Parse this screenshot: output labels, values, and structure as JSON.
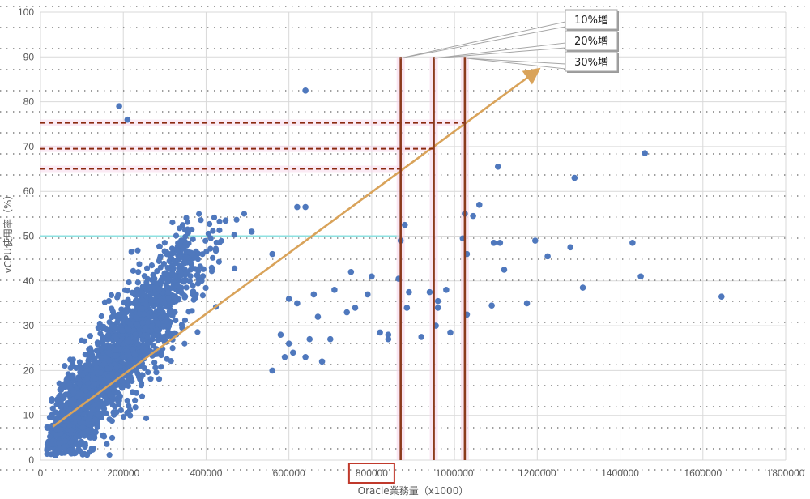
{
  "chart_data": {
    "type": "scatter",
    "xlabel": "Oracle業務量（x1000）",
    "ylabel": "vCPU使用率（%）",
    "xlim": [
      0,
      1800000
    ],
    "ylim": [
      0,
      100
    ],
    "x_ticks": [
      0,
      200000,
      400000,
      600000,
      800000,
      1000000,
      1200000,
      1400000,
      1600000,
      1800000
    ],
    "x_tick_labels": [
      "0",
      "200000",
      "400000",
      "600000",
      "800000",
      "1000000",
      "1200000",
      "1400000",
      "1600000",
      "1800000"
    ],
    "y_ticks": [
      0,
      10,
      20,
      30,
      40,
      50,
      60,
      70,
      80,
      90,
      100
    ],
    "y_tick_labels": [
      "0",
      "10",
      "20",
      "30",
      "40",
      "50",
      "60",
      "70",
      "80",
      "90",
      "100"
    ],
    "highlighted_x_tick": "800000",
    "grid": true,
    "point_color": "#4f78bd",
    "trend_line": {
      "x": [
        30000,
        1200000
      ],
      "y": [
        7.5,
        87
      ],
      "color": "#d9a35a"
    },
    "reference_line_50": {
      "y": 50,
      "color": "#8ee0e0"
    },
    "horizontal_dashed_lines": [
      {
        "y": 65,
        "x_to": 870000
      },
      {
        "y": 69.5,
        "x_to": 950000
      },
      {
        "y": 75.3,
        "x_to": 1025000
      }
    ],
    "vertical_lines": [
      {
        "x": 870000,
        "y_to": 90
      },
      {
        "x": 950000,
        "y_to": 90
      },
      {
        "x": 1025000,
        "y_to": 90
      }
    ],
    "annotations": [
      "10%増",
      "20%増",
      "30%増"
    ],
    "outlier_points": [
      [
        640000,
        82.5
      ],
      [
        190000,
        79
      ],
      [
        210000,
        76
      ],
      [
        1460000,
        68.5
      ],
      [
        1105000,
        65.5
      ],
      [
        1290000,
        63
      ],
      [
        1060000,
        57
      ],
      [
        1025000,
        55
      ],
      [
        1045000,
        54.5
      ],
      [
        880000,
        52.5
      ],
      [
        1020000,
        49.5
      ],
      [
        870000,
        49
      ],
      [
        1195000,
        49
      ],
      [
        1095000,
        48.5
      ],
      [
        1110000,
        48.5
      ],
      [
        1430000,
        48.5
      ],
      [
        1280000,
        47.5
      ],
      [
        1030000,
        46
      ],
      [
        1225000,
        45.5
      ],
      [
        1120000,
        42.5
      ],
      [
        1450000,
        41
      ],
      [
        865000,
        40.5
      ],
      [
        1310000,
        38.5
      ],
      [
        890000,
        37.5
      ],
      [
        1645000,
        36.5
      ],
      [
        940000,
        37.5
      ],
      [
        980000,
        38
      ],
      [
        960000,
        35.5
      ],
      [
        1090000,
        34.5
      ],
      [
        1175000,
        35
      ],
      [
        960000,
        34
      ],
      [
        885000,
        34
      ],
      [
        1030000,
        32.5
      ],
      [
        955000,
        30
      ],
      [
        990000,
        28.5
      ],
      [
        820000,
        28.5
      ],
      [
        920000,
        27.5
      ],
      [
        840000,
        27
      ],
      [
        760000,
        34
      ],
      [
        740000,
        33
      ],
      [
        710000,
        38
      ],
      [
        750000,
        42
      ],
      [
        800000,
        41
      ],
      [
        790000,
        37
      ],
      [
        660000,
        37
      ],
      [
        600000,
        36
      ],
      [
        620000,
        35
      ],
      [
        580000,
        28
      ],
      [
        600000,
        26
      ],
      [
        610000,
        24
      ],
      [
        640000,
        23
      ],
      [
        590000,
        23
      ],
      [
        560000,
        20
      ],
      [
        650000,
        27
      ],
      [
        670000,
        32
      ],
      [
        680000,
        22
      ],
      [
        700000,
        27
      ],
      [
        510000,
        51
      ],
      [
        560000,
        46
      ],
      [
        340000,
        49
      ],
      [
        620000,
        56.5
      ],
      [
        640000,
        56.5
      ],
      [
        220000,
        46.5
      ],
      [
        130000,
        5
      ],
      [
        840000,
        28
      ]
    ],
    "dense_cluster": [
      {
        "x_center": 210000,
        "y_center": 25,
        "slope_per_100k": 11.5,
        "x_spread": 95000,
        "y_spread": 6,
        "count": 1500
      },
      {
        "x_center": 90000,
        "y_center": 12,
        "slope_per_100k": 12,
        "x_spread": 45000,
        "y_spread": 4,
        "count": 700
      }
    ]
  }
}
